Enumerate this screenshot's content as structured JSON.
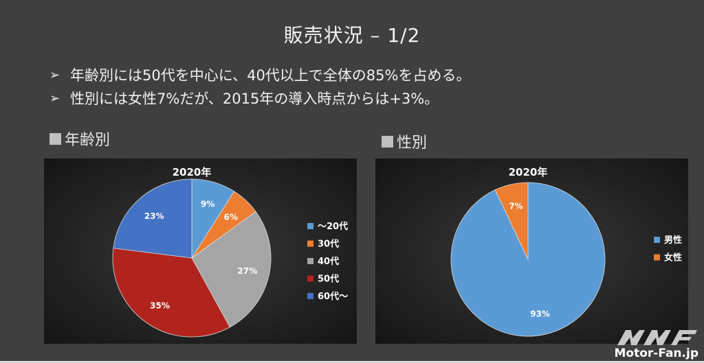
{
  "slide": {
    "title": "販売状況 – 1/2",
    "bullets": [
      "年齢別には50代を中心に、40代以上で全体の85%を占める。",
      "性別には女性7%だが、2015年の導入時点からは+3%。"
    ],
    "bullet_mark": "➢"
  },
  "sections": {
    "age_label": "年齢別",
    "gender_label": "性別"
  },
  "watermark": {
    "text": "Motor-Fan.jp",
    "logo": "MF-logo"
  },
  "chart_data": [
    {
      "type": "pie",
      "title": "2020年",
      "categories": [
        "～20代",
        "30代",
        "40代",
        "50代",
        "60代～"
      ],
      "values": [
        9,
        6,
        27,
        35,
        23
      ],
      "labels": [
        "9%",
        "6%",
        "27%",
        "35%",
        "23%"
      ],
      "colors": [
        "#5b9bd5",
        "#ed7d31",
        "#a5a5a5",
        "#b0241d",
        "#4472c4"
      ],
      "legend_position": "right"
    },
    {
      "type": "pie",
      "title": "2020年",
      "categories": [
        "男性",
        "女性"
      ],
      "values": [
        93,
        7
      ],
      "labels": [
        "93%",
        "7%"
      ],
      "colors": [
        "#5b9bd5",
        "#ed7d31"
      ],
      "legend_position": "right"
    }
  ]
}
